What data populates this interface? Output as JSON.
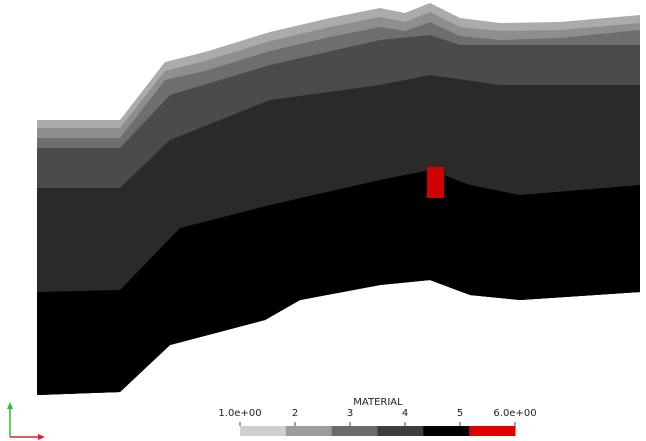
{
  "scalar_bar": {
    "title": "MATERIAL",
    "range": [
      1,
      6
    ],
    "ticks": [
      {
        "value": 1,
        "label": "1.0e+00"
      },
      2,
      3,
      4,
      5,
      {
        "value": 6,
        "label": "6.0e+00"
      }
    ],
    "colors": [
      "#cfcfcf",
      "#9c9c9c",
      "#6b6b6b",
      "#3d3d3d",
      "#000000",
      "#e00000"
    ]
  }
}
